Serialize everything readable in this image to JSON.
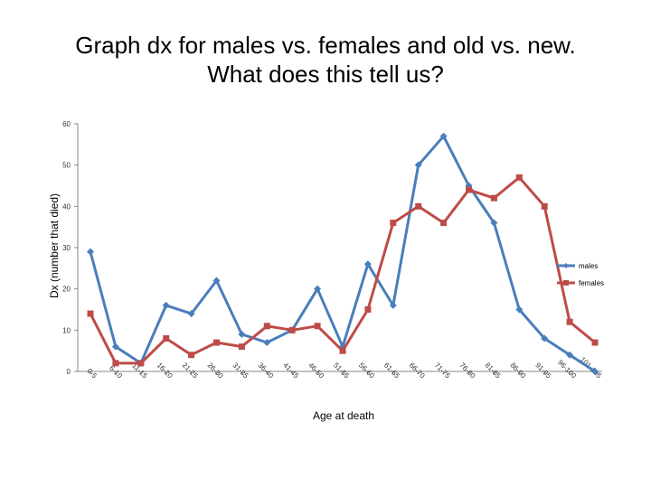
{
  "slide": {
    "title_line1": "Graph dx for males vs. females and old vs. new.",
    "title_line2": "What does this tell us?"
  },
  "chart_data": {
    "type": "line",
    "title": "",
    "xlabel": "Age at death",
    "ylabel": "Dx (number that died)",
    "ylim": [
      0,
      60
    ],
    "yticks": [
      0,
      10,
      20,
      30,
      40,
      50,
      60
    ],
    "grid": false,
    "legend_position": "right",
    "categories": [
      "0-5",
      "6-10",
      "11-15",
      "16-20",
      "21-25",
      "26-30",
      "31-35",
      "36-40",
      "41-45",
      "46-50",
      "51-55",
      "56-60",
      "61-65",
      "66-70",
      "71-75",
      "76-80",
      "81-85",
      "86-90",
      "91-95",
      "96-100",
      "101-105"
    ],
    "series": [
      {
        "name": "males",
        "color": "#4a7ebb",
        "marker": "diamond",
        "values": [
          29,
          6,
          2,
          16,
          14,
          22,
          9,
          7,
          10,
          20,
          6,
          26,
          16,
          50,
          57,
          45,
          36,
          15,
          8,
          4,
          0
        ]
      },
      {
        "name": "females",
        "color": "#be4b48",
        "marker": "square",
        "values": [
          14,
          2,
          2,
          8,
          4,
          7,
          6,
          11,
          10,
          11,
          5,
          15,
          36,
          40,
          36,
          44,
          42,
          47,
          40,
          12,
          7
        ]
      }
    ]
  }
}
